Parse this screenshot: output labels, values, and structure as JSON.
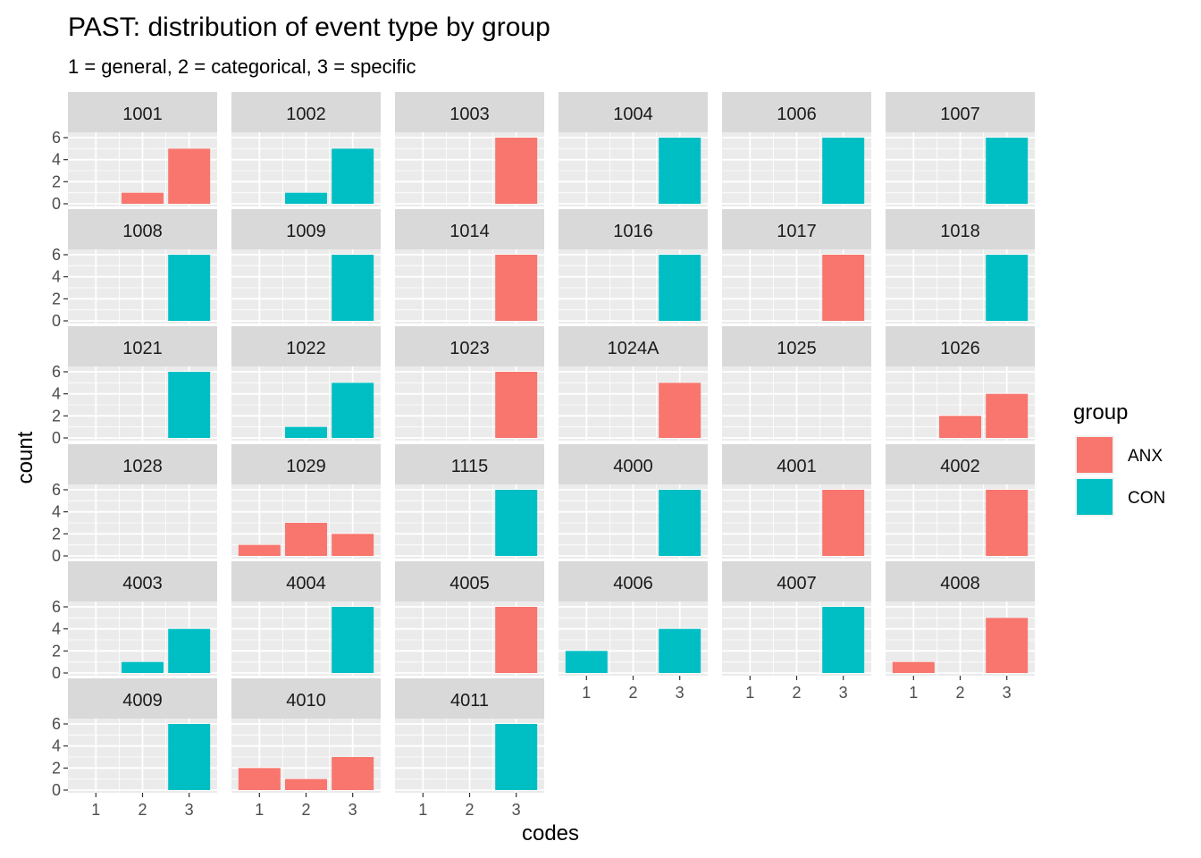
{
  "chart_data": {
    "type": "bar",
    "title": "PAST: distribution of event type by group",
    "subtitle": "1 = general, 2 = categorical, 3 = specific",
    "xlabel": "codes",
    "ylabel": "count",
    "x_categories": [
      "1",
      "2",
      "3"
    ],
    "y_ticks": [
      "0",
      "2",
      "4",
      "6"
    ],
    "ylim": [
      0,
      6
    ],
    "grid": true,
    "legend": {
      "title": "group",
      "position": "right",
      "items": [
        {
          "label": "ANX",
          "color": "#F8766D"
        },
        {
          "label": "CON",
          "color": "#00BFC4"
        }
      ]
    },
    "facets": [
      {
        "label": "1001",
        "bars": [
          {
            "code": 2,
            "group": "ANX",
            "value": 1
          },
          {
            "code": 3,
            "group": "ANX",
            "value": 5
          }
        ]
      },
      {
        "label": "1002",
        "bars": [
          {
            "code": 2,
            "group": "CON",
            "value": 1
          },
          {
            "code": 3,
            "group": "CON",
            "value": 5
          }
        ]
      },
      {
        "label": "1003",
        "bars": [
          {
            "code": 3,
            "group": "ANX",
            "value": 6
          }
        ]
      },
      {
        "label": "1004",
        "bars": [
          {
            "code": 3,
            "group": "CON",
            "value": 6
          }
        ]
      },
      {
        "label": "1006",
        "bars": [
          {
            "code": 3,
            "group": "CON",
            "value": 6
          }
        ]
      },
      {
        "label": "1007",
        "bars": [
          {
            "code": 3,
            "group": "CON",
            "value": 6
          }
        ]
      },
      {
        "label": "1008",
        "bars": [
          {
            "code": 3,
            "group": "CON",
            "value": 6
          }
        ]
      },
      {
        "label": "1009",
        "bars": [
          {
            "code": 3,
            "group": "CON",
            "value": 6
          }
        ]
      },
      {
        "label": "1014",
        "bars": [
          {
            "code": 3,
            "group": "ANX",
            "value": 6
          }
        ]
      },
      {
        "label": "1016",
        "bars": [
          {
            "code": 3,
            "group": "CON",
            "value": 6
          }
        ]
      },
      {
        "label": "1017",
        "bars": [
          {
            "code": 3,
            "group": "ANX",
            "value": 6
          }
        ]
      },
      {
        "label": "1018",
        "bars": [
          {
            "code": 3,
            "group": "CON",
            "value": 6
          }
        ]
      },
      {
        "label": "1021",
        "bars": [
          {
            "code": 3,
            "group": "CON",
            "value": 6
          }
        ]
      },
      {
        "label": "1022",
        "bars": [
          {
            "code": 2,
            "group": "CON",
            "value": 1
          },
          {
            "code": 3,
            "group": "CON",
            "value": 5
          }
        ]
      },
      {
        "label": "1023",
        "bars": [
          {
            "code": 3,
            "group": "ANX",
            "value": 6
          }
        ]
      },
      {
        "label": "1024A",
        "bars": [
          {
            "code": 3,
            "group": "ANX",
            "value": 5
          }
        ]
      },
      {
        "label": "1025",
        "bars": []
      },
      {
        "label": "1026",
        "bars": [
          {
            "code": 2,
            "group": "ANX",
            "value": 2
          },
          {
            "code": 3,
            "group": "ANX",
            "value": 4
          }
        ]
      },
      {
        "label": "1028",
        "bars": []
      },
      {
        "label": "1029",
        "bars": [
          {
            "code": 1,
            "group": "ANX",
            "value": 1
          },
          {
            "code": 2,
            "group": "ANX",
            "value": 3
          },
          {
            "code": 3,
            "group": "ANX",
            "value": 2
          }
        ]
      },
      {
        "label": "1115",
        "bars": [
          {
            "code": 3,
            "group": "CON",
            "value": 6
          }
        ]
      },
      {
        "label": "4000",
        "bars": [
          {
            "code": 3,
            "group": "CON",
            "value": 6
          }
        ]
      },
      {
        "label": "4001",
        "bars": [
          {
            "code": 3,
            "group": "ANX",
            "value": 6
          }
        ]
      },
      {
        "label": "4002",
        "bars": [
          {
            "code": 3,
            "group": "ANX",
            "value": 6
          }
        ]
      },
      {
        "label": "4003",
        "bars": [
          {
            "code": 2,
            "group": "CON",
            "value": 1
          },
          {
            "code": 3,
            "group": "CON",
            "value": 4
          }
        ]
      },
      {
        "label": "4004",
        "bars": [
          {
            "code": 3,
            "group": "CON",
            "value": 6
          }
        ]
      },
      {
        "label": "4005",
        "bars": [
          {
            "code": 3,
            "group": "ANX",
            "value": 6
          }
        ]
      },
      {
        "label": "4006",
        "bars": [
          {
            "code": 1,
            "group": "CON",
            "value": 2
          },
          {
            "code": 3,
            "group": "CON",
            "value": 4
          }
        ]
      },
      {
        "label": "4007",
        "bars": [
          {
            "code": 3,
            "group": "CON",
            "value": 6
          }
        ]
      },
      {
        "label": "4008",
        "bars": [
          {
            "code": 1,
            "group": "ANX",
            "value": 1
          },
          {
            "code": 3,
            "group": "ANX",
            "value": 5
          }
        ]
      },
      {
        "label": "4009",
        "bars": [
          {
            "code": 3,
            "group": "CON",
            "value": 6
          }
        ]
      },
      {
        "label": "4010",
        "bars": [
          {
            "code": 1,
            "group": "ANX",
            "value": 2
          },
          {
            "code": 2,
            "group": "ANX",
            "value": 1
          },
          {
            "code": 3,
            "group": "ANX",
            "value": 3
          }
        ]
      },
      {
        "label": "4011",
        "bars": [
          {
            "code": 3,
            "group": "CON",
            "value": 6
          }
        ]
      }
    ]
  }
}
